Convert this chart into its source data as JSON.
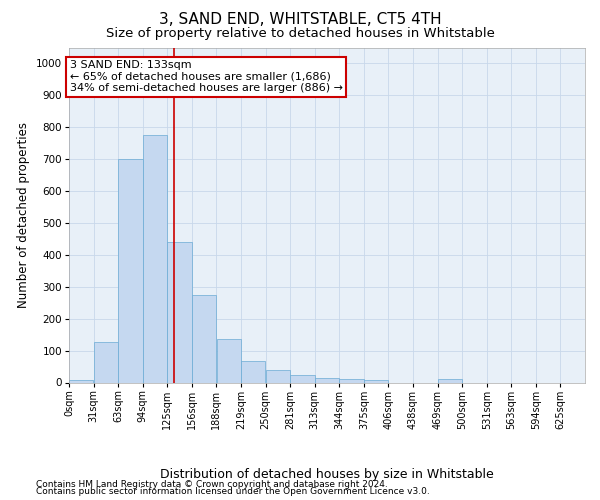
{
  "title": "3, SAND END, WHITSTABLE, CT5 4TH",
  "subtitle": "Size of property relative to detached houses in Whitstable",
  "xlabel": "Distribution of detached houses by size in Whitstable",
  "ylabel": "Number of detached properties",
  "bar_labels": [
    "0sqm",
    "31sqm",
    "63sqm",
    "94sqm",
    "125sqm",
    "156sqm",
    "188sqm",
    "219sqm",
    "250sqm",
    "281sqm",
    "313sqm",
    "344sqm",
    "375sqm",
    "406sqm",
    "438sqm",
    "469sqm",
    "500sqm",
    "531sqm",
    "563sqm",
    "594sqm",
    "625sqm"
  ],
  "bar_values": [
    8,
    128,
    700,
    775,
    440,
    275,
    135,
    68,
    40,
    25,
    15,
    12,
    8,
    0,
    0,
    10,
    0,
    0,
    0,
    0,
    0
  ],
  "bar_color": "#c5d8f0",
  "bar_edge_color": "#6aaad4",
  "grid_color": "#c8d8ea",
  "background_color": "#e8f0f8",
  "annotation_text": "3 SAND END: 133sqm\n← 65% of detached houses are smaller (1,686)\n34% of semi-detached houses are larger (886) →",
  "annotation_box_facecolor": "#ffffff",
  "annotation_box_edgecolor": "#cc0000",
  "vline_color": "#cc0000",
  "vline_x_sqm": 133,
  "bin_size": 31,
  "num_bins": 21,
  "ylim": [
    0,
    1050
  ],
  "yticks": [
    0,
    100,
    200,
    300,
    400,
    500,
    600,
    700,
    800,
    900,
    1000
  ],
  "footer_line1": "Contains HM Land Registry data © Crown copyright and database right 2024.",
  "footer_line2": "Contains public sector information licensed under the Open Government Licence v3.0.",
  "title_fontsize": 11,
  "subtitle_fontsize": 9.5,
  "annotation_fontsize": 8,
  "tick_fontsize": 7,
  "ylabel_fontsize": 8.5,
  "xlabel_fontsize": 9,
  "footer_fontsize": 6.5
}
